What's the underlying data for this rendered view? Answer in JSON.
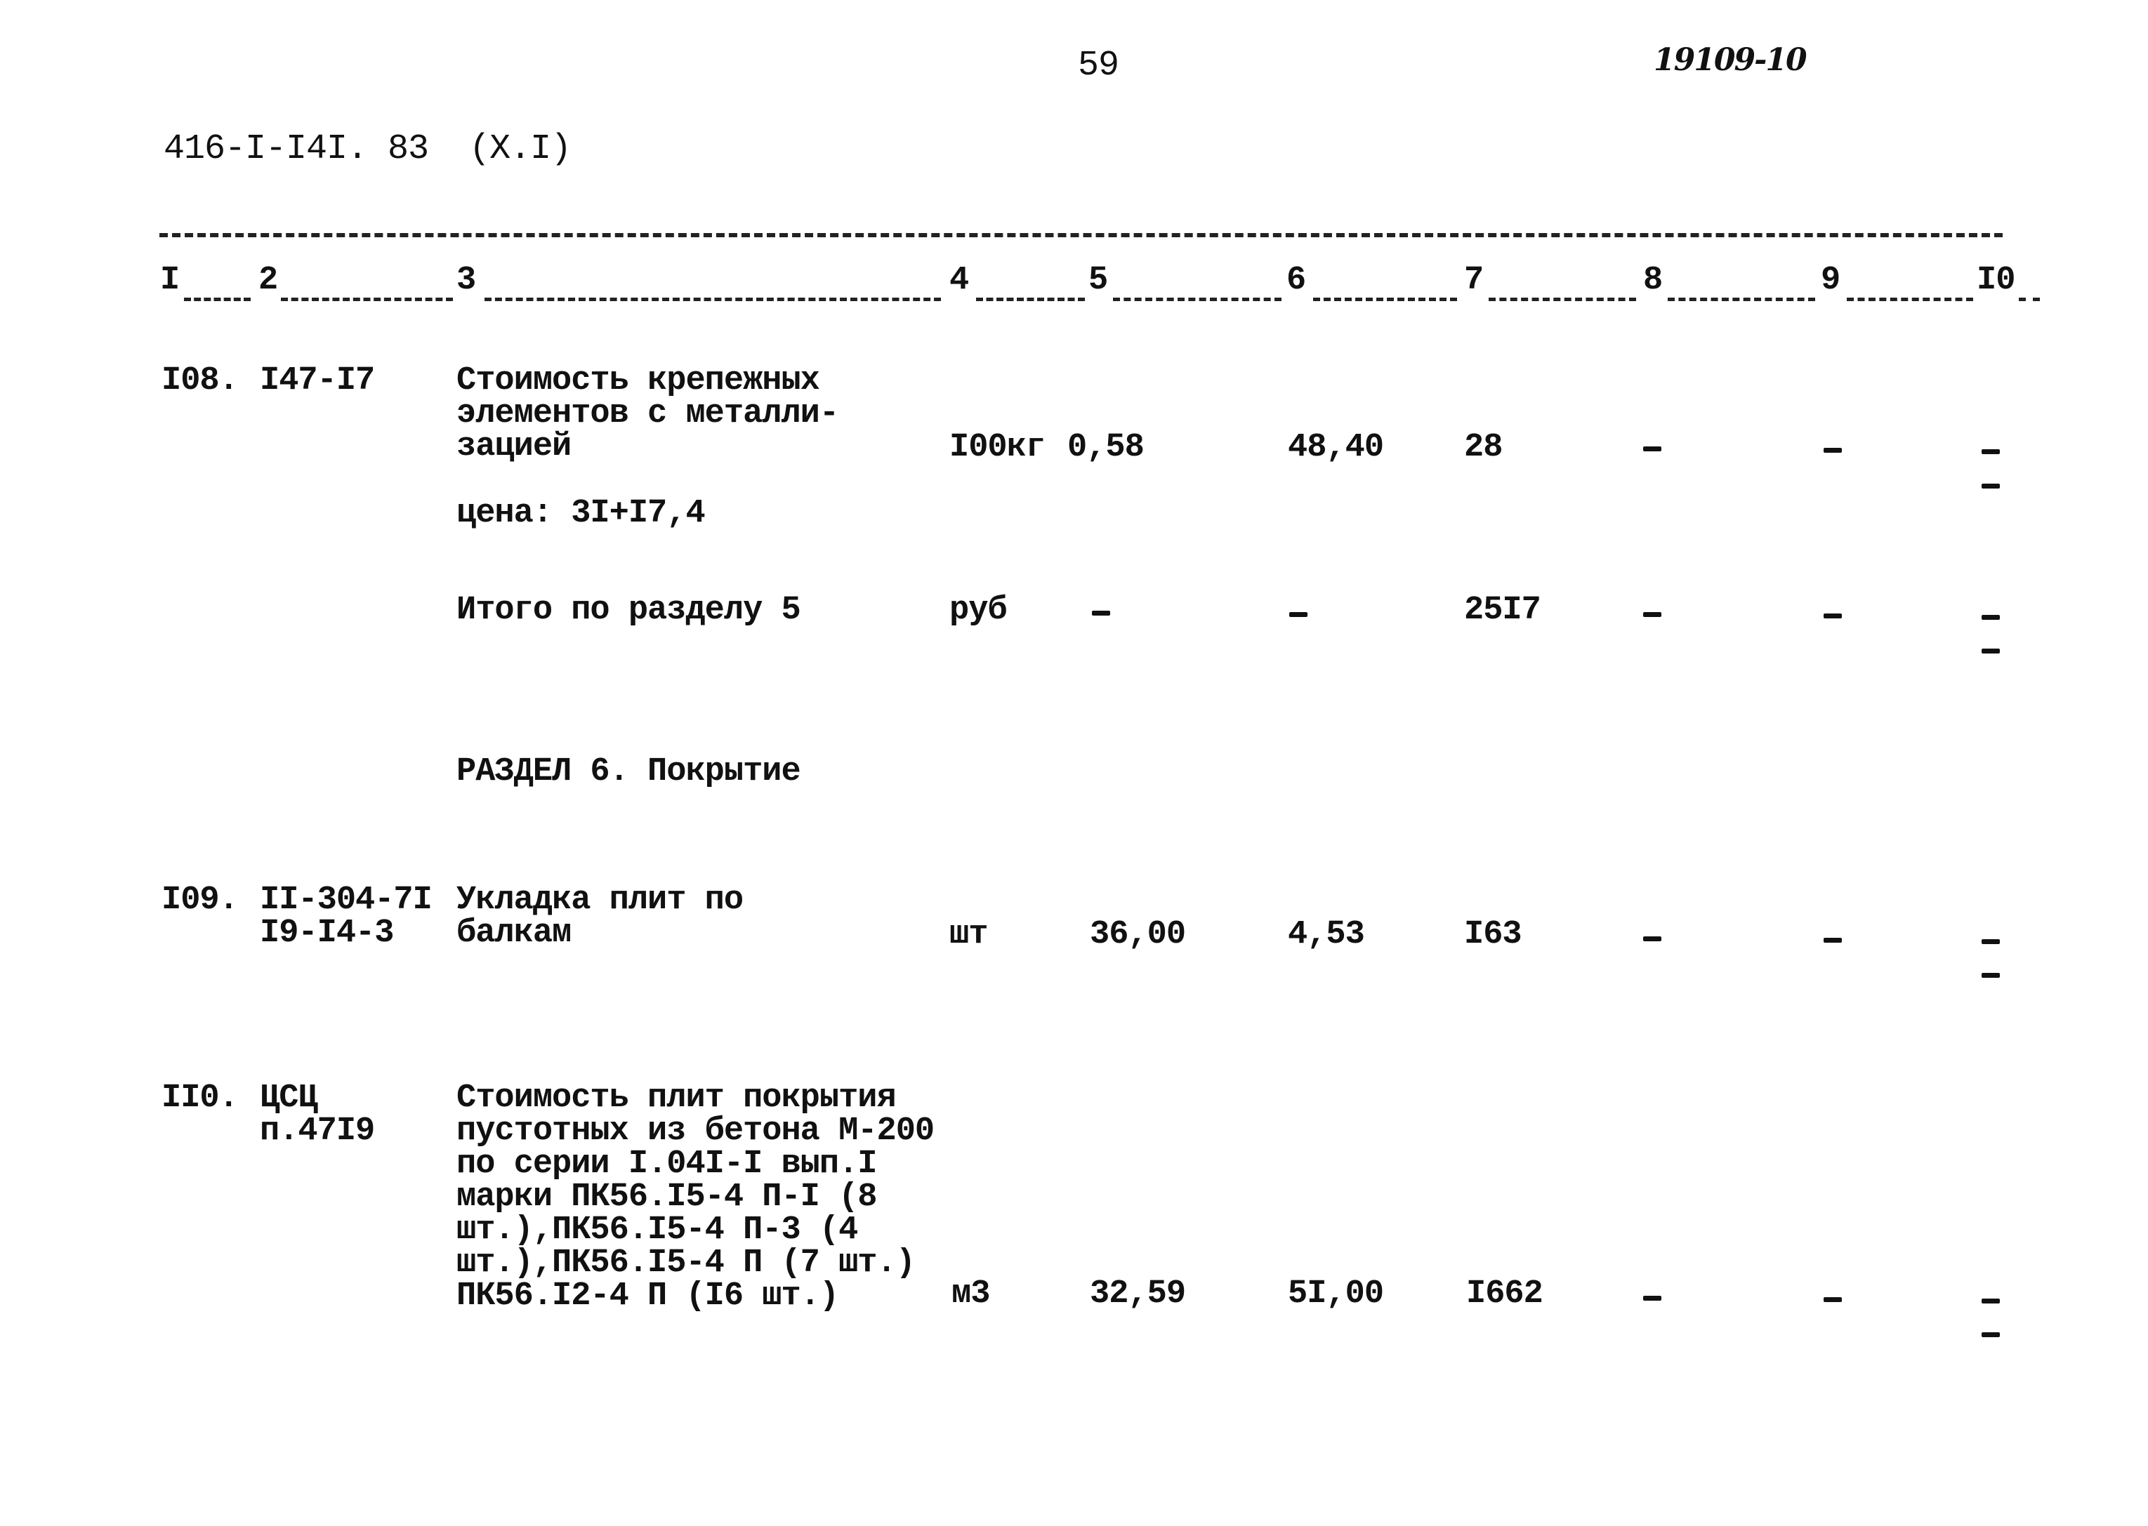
{
  "page_number": "59",
  "handwritten_ref": "19109-10",
  "doc_code": "416-I-I4I. 83  (X.I)",
  "columns": [
    "I",
    "2",
    "3",
    "4",
    "5",
    "6",
    "7",
    "8",
    "9",
    "I0"
  ],
  "rows": [
    {
      "num": "I08.",
      "code": [
        "I47-I7"
      ],
      "text": [
        "Стоимость крепежных",
        "элементов с металли-",
        "зацией"
      ],
      "unit": "I00кг",
      "qty": "0,58",
      "price": "48,40",
      "total": "28",
      "c8": "-",
      "c9": "-",
      "c10": "-",
      "note": "цена: 3I+I7,4"
    },
    {
      "text": [
        "Итого по разделу 5"
      ],
      "unit": "руб",
      "qty": "-",
      "price": "-",
      "total": "25I7",
      "c8": "-",
      "c9": "-",
      "c10": "-"
    },
    {
      "section": "РАЗДЕЛ 6. Покрытие"
    },
    {
      "num": "I09.",
      "code": [
        "II-304-7I",
        "I9-I4-3"
      ],
      "text": [
        "Укладка плит по",
        "балкам"
      ],
      "unit": "шт",
      "qty": "36,00",
      "price": "4,53",
      "total": "I63",
      "c8": "-",
      "c9": "-",
      "c10": "-"
    },
    {
      "num": "II0.",
      "code": [
        "ЦСЦ",
        "п.47I9"
      ],
      "text": [
        "Стоимость плит покрытия",
        "пустотных из бетона М-200",
        "по серии I.04I-I вып.I",
        "марки ПК56.I5-4 П-I (8",
        "шт.),ПК56.I5-4 П-3 (4",
        "шт.),ПК56.I5-4 П (7 шт.)",
        "ПК56.I2-4 П (I6 шт.)"
      ],
      "unit": "м3",
      "qty": "32,59",
      "price": "5I,00",
      "total": "I662",
      "c8": "-",
      "c9": "-",
      "c10": "-"
    }
  ]
}
